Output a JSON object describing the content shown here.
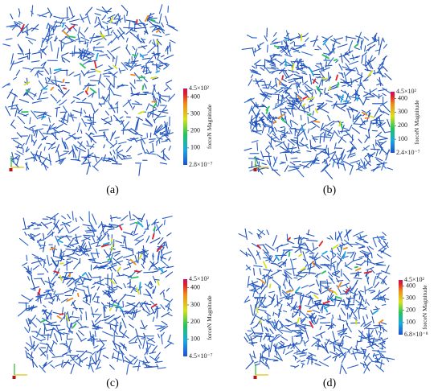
{
  "panels": [
    {
      "label": "(a)",
      "colorbar": {
        "title": "forceN Magnitude",
        "max": {
          "value": 450,
          "label": "4.5×10²"
        },
        "min": {
          "value": 2.8e-07,
          "label": "2.8×10⁻⁷"
        },
        "ticks": [
          400,
          300,
          200,
          100
        ]
      }
    },
    {
      "label": "(b)",
      "colorbar": {
        "title": "forceN Magnitude",
        "max": {
          "value": 450,
          "label": "4.5×10²"
        },
        "min": {
          "value": 2.4e-07,
          "label": "2.4×10⁻⁷"
        },
        "ticks": [
          400,
          300,
          200,
          100
        ]
      }
    },
    {
      "label": "(c)",
      "colorbar": {
        "title": "forceN Magnitude",
        "max": {
          "value": 450,
          "label": "4.5×10²"
        },
        "min": {
          "value": 4.5e-07,
          "label": "4.5×10⁻⁷"
        },
        "ticks": [
          400,
          300,
          200,
          100
        ]
      }
    },
    {
      "label": "(d)",
      "colorbar": {
        "title": "forceN Magnitude",
        "max": {
          "value": 450,
          "label": "4.5×10²"
        },
        "min": {
          "value": 6.8e-08,
          "label": "6.8×10⁻⁸"
        },
        "ticks": [
          400,
          300,
          200,
          100
        ]
      }
    }
  ]
}
